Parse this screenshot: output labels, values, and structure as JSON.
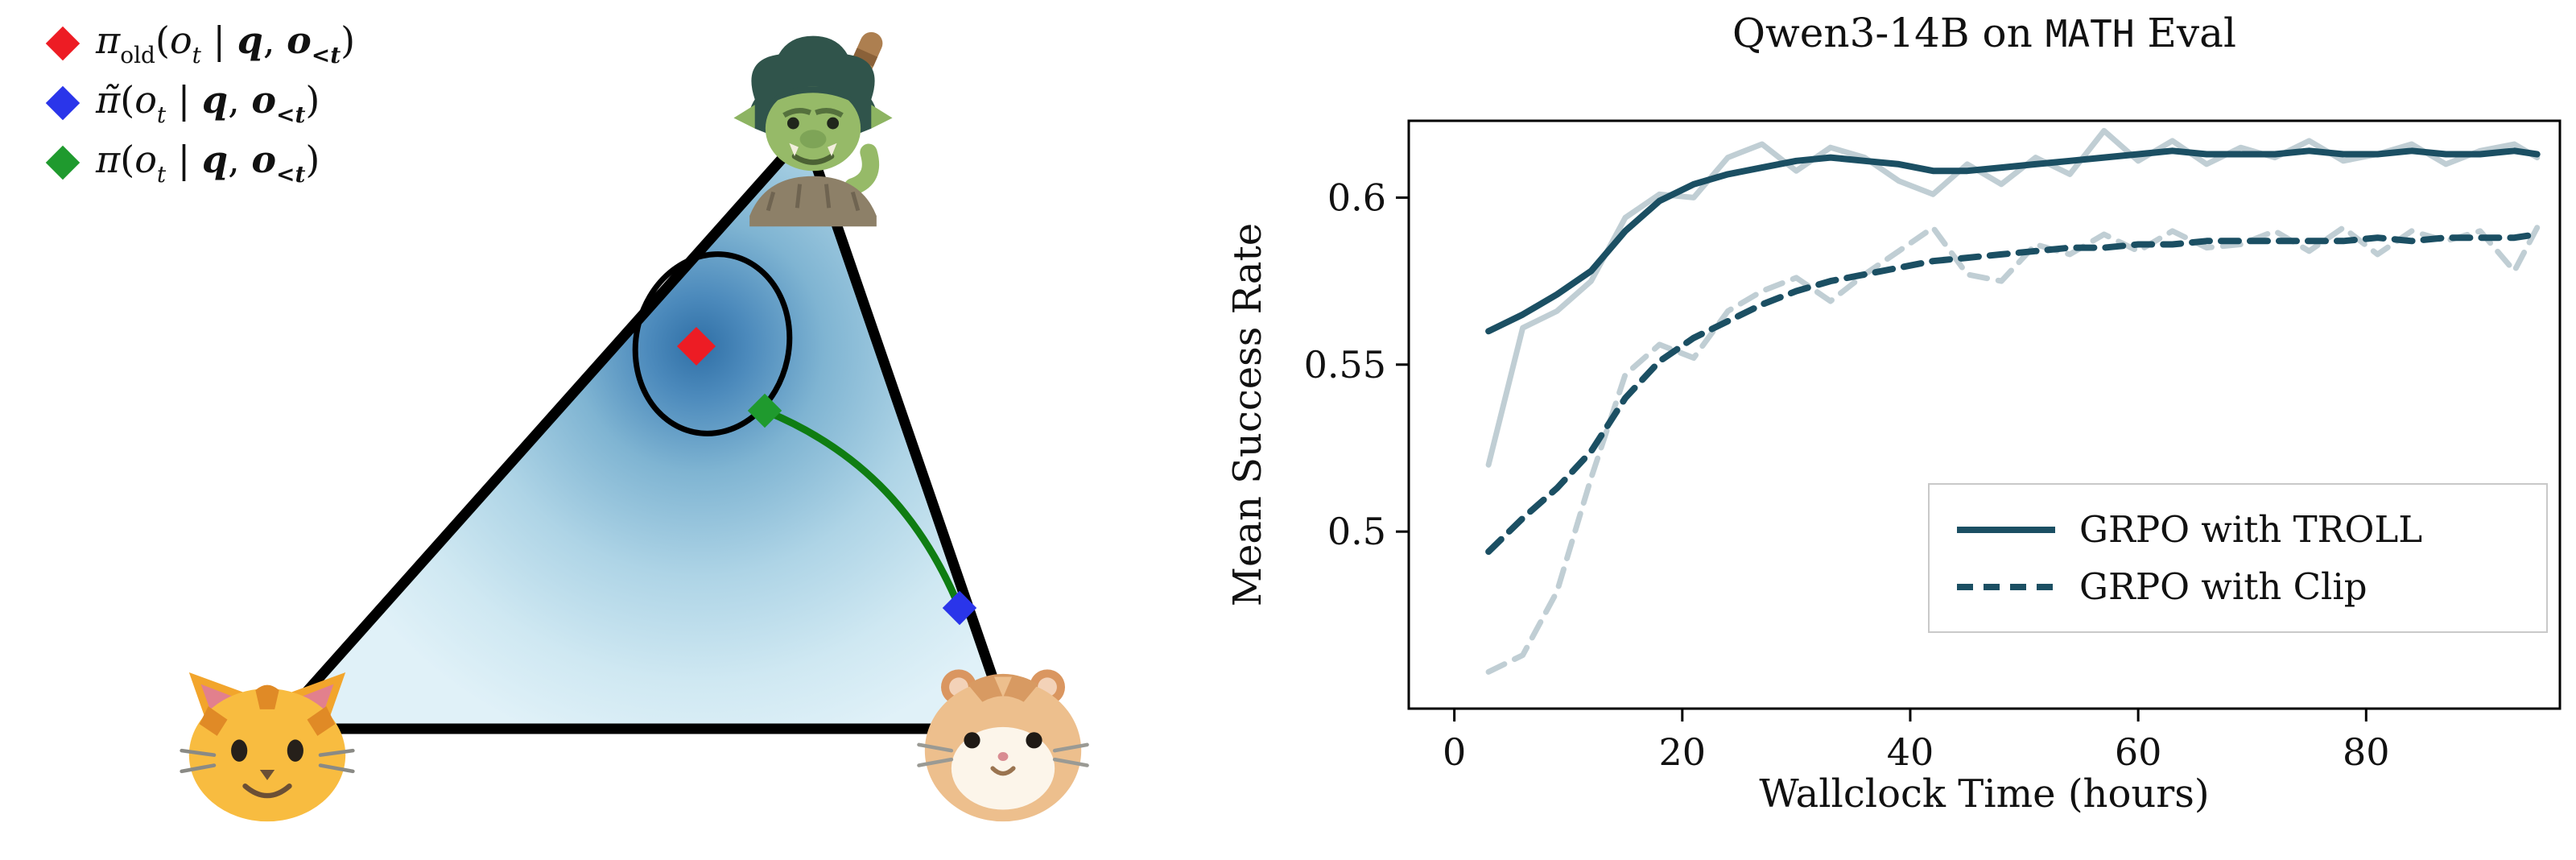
{
  "simplex_panel": {
    "legend_items": [
      {
        "id": "pi-old",
        "marker_color": "#ed1c24",
        "pre": "π",
        "presub": "old",
        "open": "(",
        "o": "o",
        "osub": "t",
        "bar": " | ",
        "q": "q",
        "comma": ", ",
        "o2": "o",
        "o2sub": "<t",
        "close": ")"
      },
      {
        "id": "pi-tilde",
        "marker_color": "#2a35ea",
        "pre": "π̃",
        "presub": "",
        "open": "(",
        "o": "o",
        "osub": "t",
        "bar": " | ",
        "q": "q",
        "comma": ", ",
        "o2": "o",
        "o2sub": "<t",
        "close": ")"
      },
      {
        "id": "pi",
        "marker_color": "#1f9a2e",
        "pre": "π",
        "presub": "",
        "open": "(",
        "o": "o",
        "osub": "t",
        "bar": " | ",
        "q": "q",
        "comma": ", ",
        "o2": "o",
        "o2sub": "<t",
        "close": ")"
      }
    ],
    "corner_icons": {
      "top": "troll",
      "bottom_left": "cat",
      "bottom_right": "hamster"
    },
    "colors": {
      "trajectory_green": "#0f7d12",
      "ellipse_stroke": "#000000",
      "gradient_center": "#2f6fa6",
      "gradient_edge": "#e0f1f8"
    }
  },
  "chart": {
    "title": {
      "prefix": "Qwen3-14B on ",
      "mono": "MATH",
      "suffix": " Eval"
    },
    "xlabel": "Wallclock Time (hours)",
    "ylabel": "Mean Success Rate",
    "legend": {
      "entries": [
        {
          "label": "GRPO with TROLL",
          "style": "solid"
        },
        {
          "label": "GRPO with Clip",
          "style": "dashed"
        }
      ]
    }
  },
  "chart_data": {
    "type": "line",
    "title": "Qwen3-14B on MATH Eval",
    "xlabel": "Wallclock Time (hours)",
    "ylabel": "Mean Success Rate",
    "xlim": [
      -4,
      97
    ],
    "ylim": [
      0.447,
      0.623
    ],
    "x_ticks": [
      0,
      20,
      40,
      60,
      80
    ],
    "y_ticks": [
      0.5,
      0.55,
      0.6
    ],
    "grid": false,
    "legend_position": "lower right",
    "line_color": "#1b4f63",
    "x": [
      3,
      6,
      9,
      12,
      15,
      18,
      21,
      24,
      27,
      30,
      33,
      36,
      39,
      42,
      45,
      48,
      51,
      54,
      57,
      60,
      63,
      66,
      69,
      72,
      75,
      78,
      81,
      84,
      87,
      90,
      93,
      95
    ],
    "series": [
      {
        "name": "GRPO with TROLL (raw)",
        "style": "solid",
        "opacity": 0.28,
        "in_legend": false,
        "values": [
          0.52,
          0.561,
          0.566,
          0.575,
          0.594,
          0.601,
          0.6,
          0.612,
          0.616,
          0.608,
          0.615,
          0.612,
          0.605,
          0.601,
          0.61,
          0.604,
          0.612,
          0.607,
          0.62,
          0.611,
          0.617,
          0.61,
          0.615,
          0.612,
          0.617,
          0.611,
          0.613,
          0.616,
          0.61,
          0.614,
          0.616,
          0.612
        ]
      },
      {
        "name": "GRPO with Clip (raw)",
        "style": "dashed",
        "opacity": 0.28,
        "in_legend": false,
        "values": [
          0.458,
          0.463,
          0.482,
          0.516,
          0.547,
          0.556,
          0.552,
          0.566,
          0.572,
          0.576,
          0.569,
          0.577,
          0.584,
          0.591,
          0.577,
          0.575,
          0.586,
          0.583,
          0.589,
          0.584,
          0.59,
          0.585,
          0.586,
          0.59,
          0.584,
          0.591,
          0.583,
          0.59,
          0.587,
          0.59,
          0.578,
          0.591
        ]
      },
      {
        "name": "GRPO with TROLL",
        "style": "solid",
        "opacity": 1,
        "in_legend": true,
        "values": [
          0.56,
          0.565,
          0.571,
          0.578,
          0.59,
          0.599,
          0.604,
          0.607,
          0.609,
          0.611,
          0.612,
          0.611,
          0.61,
          0.608,
          0.608,
          0.609,
          0.61,
          0.611,
          0.612,
          0.613,
          0.614,
          0.613,
          0.613,
          0.613,
          0.614,
          0.613,
          0.613,
          0.614,
          0.613,
          0.613,
          0.614,
          0.613
        ]
      },
      {
        "name": "GRPO with Clip",
        "style": "dashed",
        "opacity": 1,
        "in_legend": true,
        "values": [
          0.494,
          0.504,
          0.513,
          0.524,
          0.54,
          0.551,
          0.558,
          0.563,
          0.568,
          0.572,
          0.575,
          0.577,
          0.579,
          0.581,
          0.582,
          0.583,
          0.584,
          0.585,
          0.585,
          0.586,
          0.586,
          0.587,
          0.587,
          0.587,
          0.587,
          0.587,
          0.588,
          0.587,
          0.588,
          0.588,
          0.588,
          0.589
        ]
      }
    ]
  }
}
